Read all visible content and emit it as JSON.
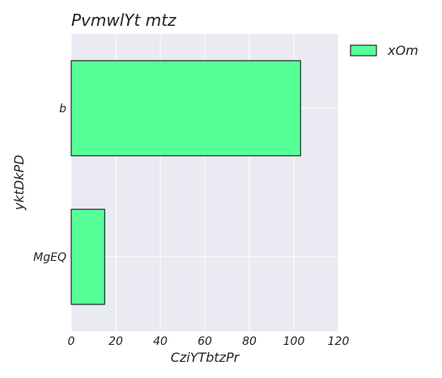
{
  "chart_data": {
    "type": "bar",
    "orientation": "horizontal",
    "title": "PvmwlYt mtz",
    "xlabel": "CziYTbtzPr",
    "ylabel": "yktDkPD",
    "categories": [
      "b",
      "MgEQ"
    ],
    "series": [
      {
        "name": "xOm",
        "values": [
          103,
          15
        ],
        "color": "#57ff99"
      }
    ],
    "xlim": [
      0,
      120
    ],
    "xticks": [
      0,
      20,
      40,
      60,
      80,
      100,
      120
    ],
    "grid": true,
    "legend_position": "top-right-outside"
  },
  "colors": {
    "plot_background": "#eaeaf2",
    "grid": "#ffffff",
    "bar_edge": "#000000"
  }
}
